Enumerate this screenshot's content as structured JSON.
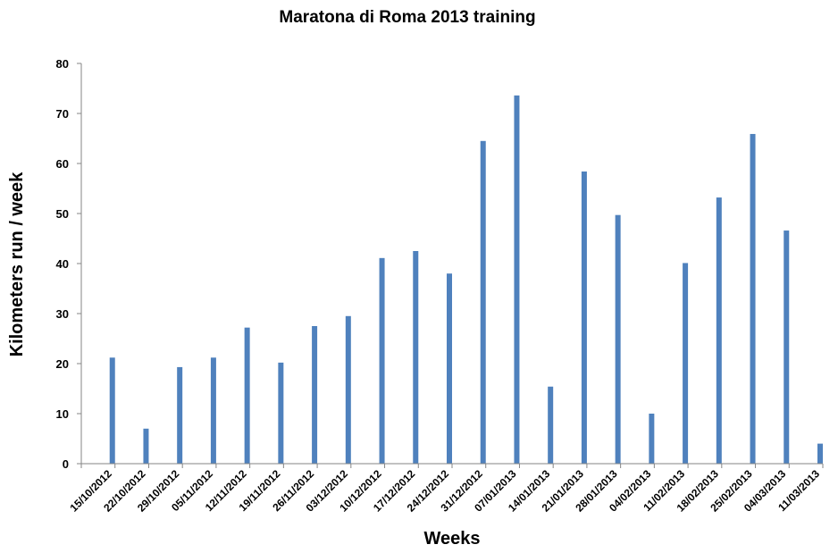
{
  "chart_data": {
    "type": "bar",
    "title": "Maratona di Roma 2013 training",
    "xlabel": "Weeks",
    "ylabel": "Kilometers run / week",
    "ylim": [
      0,
      80
    ],
    "yticks": [
      0,
      10,
      20,
      30,
      40,
      50,
      60,
      70,
      80
    ],
    "grid": false,
    "legend": "none",
    "color": "#4f81bd",
    "categories": [
      "15/10/2012",
      "22/10/2012",
      "29/10/2012",
      "05/11/2012",
      "12/11/2012",
      "19/11/2012",
      "26/11/2012",
      "03/12/2012",
      "10/12/2012",
      "17/12/2012",
      "24/12/2012",
      "31/12/2012",
      "07/01/2013",
      "14/01/2013",
      "21/01/2013",
      "28/01/2013",
      "04/02/2013",
      "11/02/2013",
      "18/02/2013",
      "25/02/2013",
      "04/03/2013",
      "11/03/2013"
    ],
    "values": [
      21.2,
      7,
      19.3,
      21.2,
      27.2,
      20.2,
      27.5,
      29.5,
      41.1,
      42.5,
      38,
      64.5,
      73.6,
      15.4,
      58.4,
      49.7,
      10,
      40.1,
      53.2,
      65.9,
      46.6,
      4
    ]
  }
}
